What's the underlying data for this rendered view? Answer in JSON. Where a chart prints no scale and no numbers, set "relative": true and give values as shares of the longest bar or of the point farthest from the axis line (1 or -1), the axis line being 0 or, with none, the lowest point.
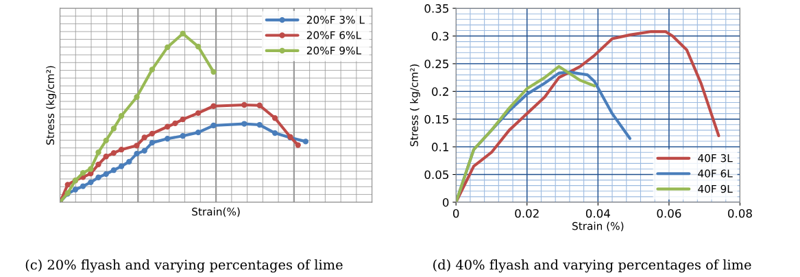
{
  "chart_data": [
    {
      "type": "line",
      "relative": true,
      "xlabel": "Strain(%)",
      "ylabel": "Stress (kg/cm²)",
      "grid": true,
      "legend": "top right",
      "marker": "circle",
      "line_style": "solid",
      "categories": [
        null,
        null,
        null,
        null,
        null,
        null,
        null,
        null,
        null,
        null,
        null,
        null,
        null,
        null,
        null,
        null,
        null,
        null,
        null,
        null,
        null,
        null,
        null,
        null,
        null,
        null,
        null,
        null,
        null,
        null,
        null,
        null,
        null
      ],
      "annotations": [
        "(c) 20% flyash and varying percentages of lime"
      ],
      "series": [
        {
          "name": "20%F 3% L",
          "color": "#4a7ebb",
          "values": [
            0,
            0.05,
            0.075,
            0.095,
            0.118,
            0.147,
            0.167,
            0.19,
            0.213,
            0.24,
            0.288,
            0.305,
            0.353,
            null,
            0.377,
            null,
            0.393,
            null,
            0.414,
            null,
            0.455,
            null,
            null,
            null,
            0.465,
            null,
            0.459,
            null,
            0.41,
            null,
            0.383,
            null,
            0.36
          ]
        },
        {
          "name": "20%F 6%L",
          "color": "#be4b48",
          "values": [
            0,
            0.104,
            0.129,
            0.149,
            0.17,
            0.224,
            0.271,
            0.292,
            0.312,
            null,
            0.336,
            0.384,
            0.407,
            null,
            0.448,
            0.468,
            0.491,
            null,
            0.529,
            null,
            0.57,
            null,
            null,
            null,
            0.577,
            null,
            0.574,
            null,
            0.499,
            null,
            0.387,
            0.339,
            null
          ]
        },
        {
          "name": "20%F 9%L",
          "color": "#98b954",
          "values": [
            0,
            0.054,
            0.129,
            0.174,
            0.197,
            0.296,
            0.366,
            0.437,
            0.512,
            null,
            0.624,
            null,
            0.787,
            null,
            0.919,
            null,
            1,
            null,
            0.923,
            null,
            0.773,
            null,
            null,
            null,
            null,
            null,
            null,
            null,
            null,
            null,
            null,
            null,
            null
          ]
        }
      ]
    },
    {
      "type": "line",
      "xlabel": "Strain (%)",
      "ylabel": "Stress ( kg/cm²)",
      "grid": true,
      "legend": "bottom right",
      "marker": "none",
      "line_style": "solid",
      "xlim": [
        0,
        0.08
      ],
      "xticks": [
        0,
        0.02,
        0.04,
        0.06,
        0.08
      ],
      "ylim": [
        0,
        0.35
      ],
      "yticks": [
        0,
        0.05,
        0.1,
        0.15,
        0.2,
        0.25,
        0.3,
        0.35
      ],
      "annotations": [
        "(d) 40% flyash and varying percentages of lime"
      ],
      "series": [
        {
          "name": "40F 3L",
          "color": "#be4b48",
          "x": [
            0,
            0.005,
            0.007,
            0.01,
            0.015,
            0.02,
            0.025,
            0.029,
            0.032,
            0.035,
            0.039,
            0.044,
            0.049,
            0.055,
            0.059,
            0.061,
            0.065,
            0.069,
            0.074
          ],
          "values": [
            0,
            0.065,
            0.075,
            0.09,
            0.13,
            0.16,
            0.19,
            0.225,
            0.235,
            0.245,
            0.265,
            0.295,
            0.302,
            0.308,
            0.308,
            0.3,
            0.275,
            0.215,
            0.12
          ]
        },
        {
          "name": "40F 6L",
          "color": "#4a7ebb",
          "x": [
            0,
            0.005,
            0.01,
            0.015,
            0.02,
            0.025,
            0.029,
            0.032,
            0.035,
            0.037,
            0.039,
            0.044,
            0.049
          ],
          "values": [
            0,
            0.095,
            0.13,
            0.165,
            0.195,
            0.215,
            0.233,
            0.235,
            0.232,
            0.23,
            0.218,
            0.16,
            0.115
          ]
        },
        {
          "name": "40F 9L",
          "color": "#98b954",
          "x": [
            0,
            0.005,
            0.01,
            0.015,
            0.02,
            0.025,
            0.029,
            0.035,
            0.039
          ],
          "values": [
            0,
            0.095,
            0.13,
            0.17,
            0.205,
            0.225,
            0.245,
            0.22,
            0.21
          ]
        }
      ]
    }
  ]
}
